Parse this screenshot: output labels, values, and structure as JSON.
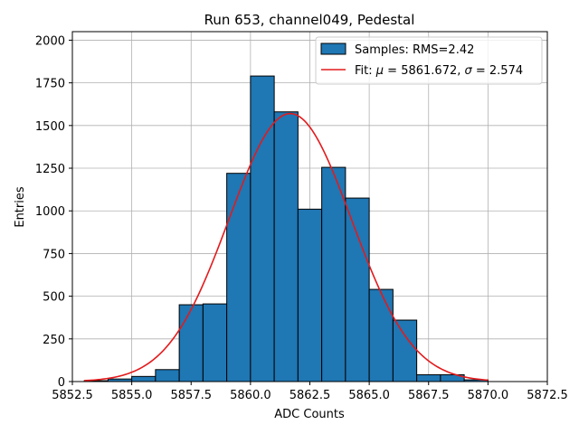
{
  "chart_data": {
    "type": "bar",
    "title": "Run 653, channel049, Pedestal",
    "xlabel": "ADC Counts",
    "ylabel": "Entries",
    "xlim": [
      5852.5,
      5872.5
    ],
    "ylim": [
      0,
      2050
    ],
    "xticks": [
      5852.5,
      5855.0,
      5857.5,
      5860.0,
      5862.5,
      5865.0,
      5867.5,
      5870.0,
      5872.5
    ],
    "xtick_labels": [
      "5852.5",
      "5855.0",
      "5857.5",
      "5860.0",
      "5862.5",
      "5865.0",
      "5867.5",
      "5870.0",
      "5872.5"
    ],
    "yticks": [
      0,
      250,
      500,
      750,
      1000,
      1250,
      1500,
      1750,
      2000
    ],
    "ytick_labels": [
      "0",
      "250",
      "500",
      "750",
      "1000",
      "1250",
      "1500",
      "1750",
      "2000"
    ],
    "grid": true,
    "legend_position": "top-right",
    "bar_color": "#1f77b4",
    "fit_color": "#e31a1c",
    "histogram": {
      "name": "Samples: RMS=2.42",
      "bin_edges": [
        5853,
        5854,
        5855,
        5856,
        5857,
        5858,
        5859,
        5860,
        5861,
        5862,
        5863,
        5864,
        5865,
        5866,
        5867,
        5868,
        5869,
        5870
      ],
      "values": [
        5,
        15,
        30,
        70,
        450,
        455,
        1220,
        1790,
        1580,
        1010,
        1255,
        1075,
        540,
        360,
        40,
        40,
        10
      ]
    },
    "fit": {
      "name": "Fit: μ = 5861.672, σ = 2.574",
      "mu": 5861.672,
      "sigma": 2.574,
      "amplitude": 1570,
      "x_range": [
        5853,
        5870
      ]
    },
    "legend": {
      "samples_label": "Samples: RMS=2.42",
      "fit_prefix": "Fit: ",
      "mu_symbol": "μ",
      "mu_text": " = 5861.672, ",
      "sigma_symbol": "σ",
      "sigma_text": " = 2.574"
    }
  }
}
